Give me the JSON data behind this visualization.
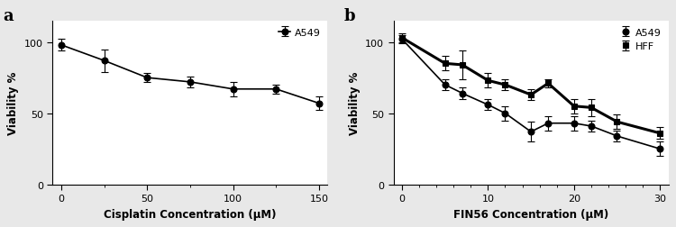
{
  "panel_a": {
    "label": "a",
    "x": [
      0,
      25,
      50,
      75,
      100,
      125,
      150
    ],
    "y": [
      98,
      87,
      75,
      72,
      67,
      67,
      57
    ],
    "yerr": [
      4,
      8,
      3,
      4,
      5,
      3,
      5
    ],
    "xlabel": "Cisplatin Concentration (μM)",
    "ylabel": "Viability %",
    "xlim": [
      -5,
      155
    ],
    "ylim": [
      0,
      115
    ],
    "yticks": [
      0,
      50,
      100
    ],
    "xticks": [
      0,
      50,
      100,
      150
    ],
    "legend_label": "A549",
    "color": "#000000",
    "marker": "o",
    "markersize": 5,
    "linewidth": 1.2
  },
  "panel_b": {
    "label": "b",
    "a549_x": [
      0,
      5,
      7,
      10,
      12,
      15,
      17,
      20,
      22,
      25,
      30
    ],
    "a549_y": [
      102,
      70,
      64,
      56,
      50,
      37,
      43,
      43,
      41,
      34,
      25
    ],
    "a549_yerr": [
      3,
      4,
      4,
      4,
      5,
      7,
      5,
      5,
      4,
      4,
      5
    ],
    "hff_x": [
      0,
      5,
      7,
      10,
      12,
      15,
      17,
      20,
      22,
      25,
      30
    ],
    "hff_y": [
      103,
      85,
      84,
      73,
      70,
      63,
      71,
      55,
      54,
      44,
      36
    ],
    "hff_yerr": [
      3,
      5,
      10,
      5,
      4,
      4,
      3,
      5,
      6,
      5,
      4
    ],
    "xlabel": "FIN56 Concentration (μM)",
    "ylabel": "Viability %",
    "xlim": [
      -1,
      31
    ],
    "ylim": [
      0,
      115
    ],
    "yticks": [
      0,
      50,
      100
    ],
    "xticks": [
      0,
      10,
      20,
      30
    ],
    "legend_a549": "A549",
    "legend_hff": "HFF",
    "a549_color": "#000000",
    "hff_color": "#000000",
    "a549_marker": "o",
    "hff_marker": "s",
    "markersize": 5,
    "a549_linewidth": 1.2,
    "hff_linewidth": 2.2
  },
  "fig_facecolor": "#e8e8e8",
  "panel_facecolor": "#ffffff",
  "border_color": "#aaaaaa"
}
